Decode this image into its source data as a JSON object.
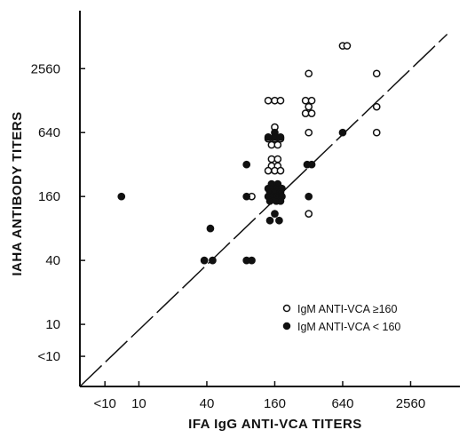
{
  "chart_data": {
    "type": "scatter",
    "title": "",
    "xlabel": "IFA IgG ANTI-VCA TITERS",
    "ylabel": "IAHA ANTIBODY TITERS",
    "scale": "log2",
    "x_ticks": [
      "<10",
      "10",
      "40",
      "160",
      "640",
      "2560"
    ],
    "y_ticks": [
      "<10",
      "10",
      "40",
      "160",
      "640",
      "2560"
    ],
    "x_tick_values": [
      5,
      10,
      40,
      160,
      640,
      2560
    ],
    "y_tick_values": [
      5,
      10,
      40,
      160,
      640,
      2560
    ],
    "xlim": [
      3,
      7000
    ],
    "ylim": [
      2.6,
      9000
    ],
    "diagonal_line": {
      "style": "dashed",
      "from": [
        3,
        2.6
      ],
      "to": [
        5400,
        5400
      ]
    },
    "legend_position": "bottom-right",
    "colors": {
      "open": "#ffffff",
      "filled": "#111111",
      "stroke": "#111111"
    },
    "series": [
      {
        "name": "IgM ANTI-VCA ≥160",
        "marker": "open-circle",
        "points": [
          [
            640,
            4200
          ],
          [
            700,
            4200
          ],
          [
            320,
            2300
          ],
          [
            1280,
            2300
          ],
          [
            140,
            1280
          ],
          [
            160,
            1280
          ],
          [
            180,
            1280
          ],
          [
            300,
            1280
          ],
          [
            340,
            1280
          ],
          [
            320,
            1120
          ],
          [
            1280,
            1120
          ],
          [
            300,
            970
          ],
          [
            340,
            970
          ],
          [
            160,
            720
          ],
          [
            320,
            640
          ],
          [
            1280,
            640
          ],
          [
            140,
            560
          ],
          [
            160,
            560
          ],
          [
            180,
            560
          ],
          [
            150,
            490
          ],
          [
            170,
            490
          ],
          [
            150,
            360
          ],
          [
            170,
            360
          ],
          [
            150,
            310
          ],
          [
            170,
            310
          ],
          [
            140,
            280
          ],
          [
            160,
            280
          ],
          [
            180,
            280
          ],
          [
            100,
            160
          ],
          [
            320,
            110
          ]
        ]
      },
      {
        "name": "IgM ANTI-VCA < 160",
        "marker": "filled-circle",
        "points": [
          [
            7,
            160
          ],
          [
            160,
            640
          ],
          [
            140,
            580
          ],
          [
            160,
            580
          ],
          [
            180,
            580
          ],
          [
            640,
            640
          ],
          [
            90,
            320
          ],
          [
            310,
            320
          ],
          [
            340,
            320
          ],
          [
            150,
            210
          ],
          [
            170,
            210
          ],
          [
            140,
            190
          ],
          [
            155,
            190
          ],
          [
            170,
            190
          ],
          [
            185,
            190
          ],
          [
            145,
            175
          ],
          [
            160,
            175
          ],
          [
            180,
            175
          ],
          [
            90,
            160
          ],
          [
            140,
            160
          ],
          [
            155,
            160
          ],
          [
            170,
            160
          ],
          [
            185,
            160
          ],
          [
            320,
            160
          ],
          [
            145,
            145
          ],
          [
            165,
            145
          ],
          [
            180,
            145
          ],
          [
            160,
            110
          ],
          [
            145,
            95
          ],
          [
            175,
            95
          ],
          [
            43,
            80
          ],
          [
            38,
            40
          ],
          [
            45,
            40
          ],
          [
            90,
            40
          ],
          [
            100,
            40
          ]
        ]
      }
    ]
  }
}
